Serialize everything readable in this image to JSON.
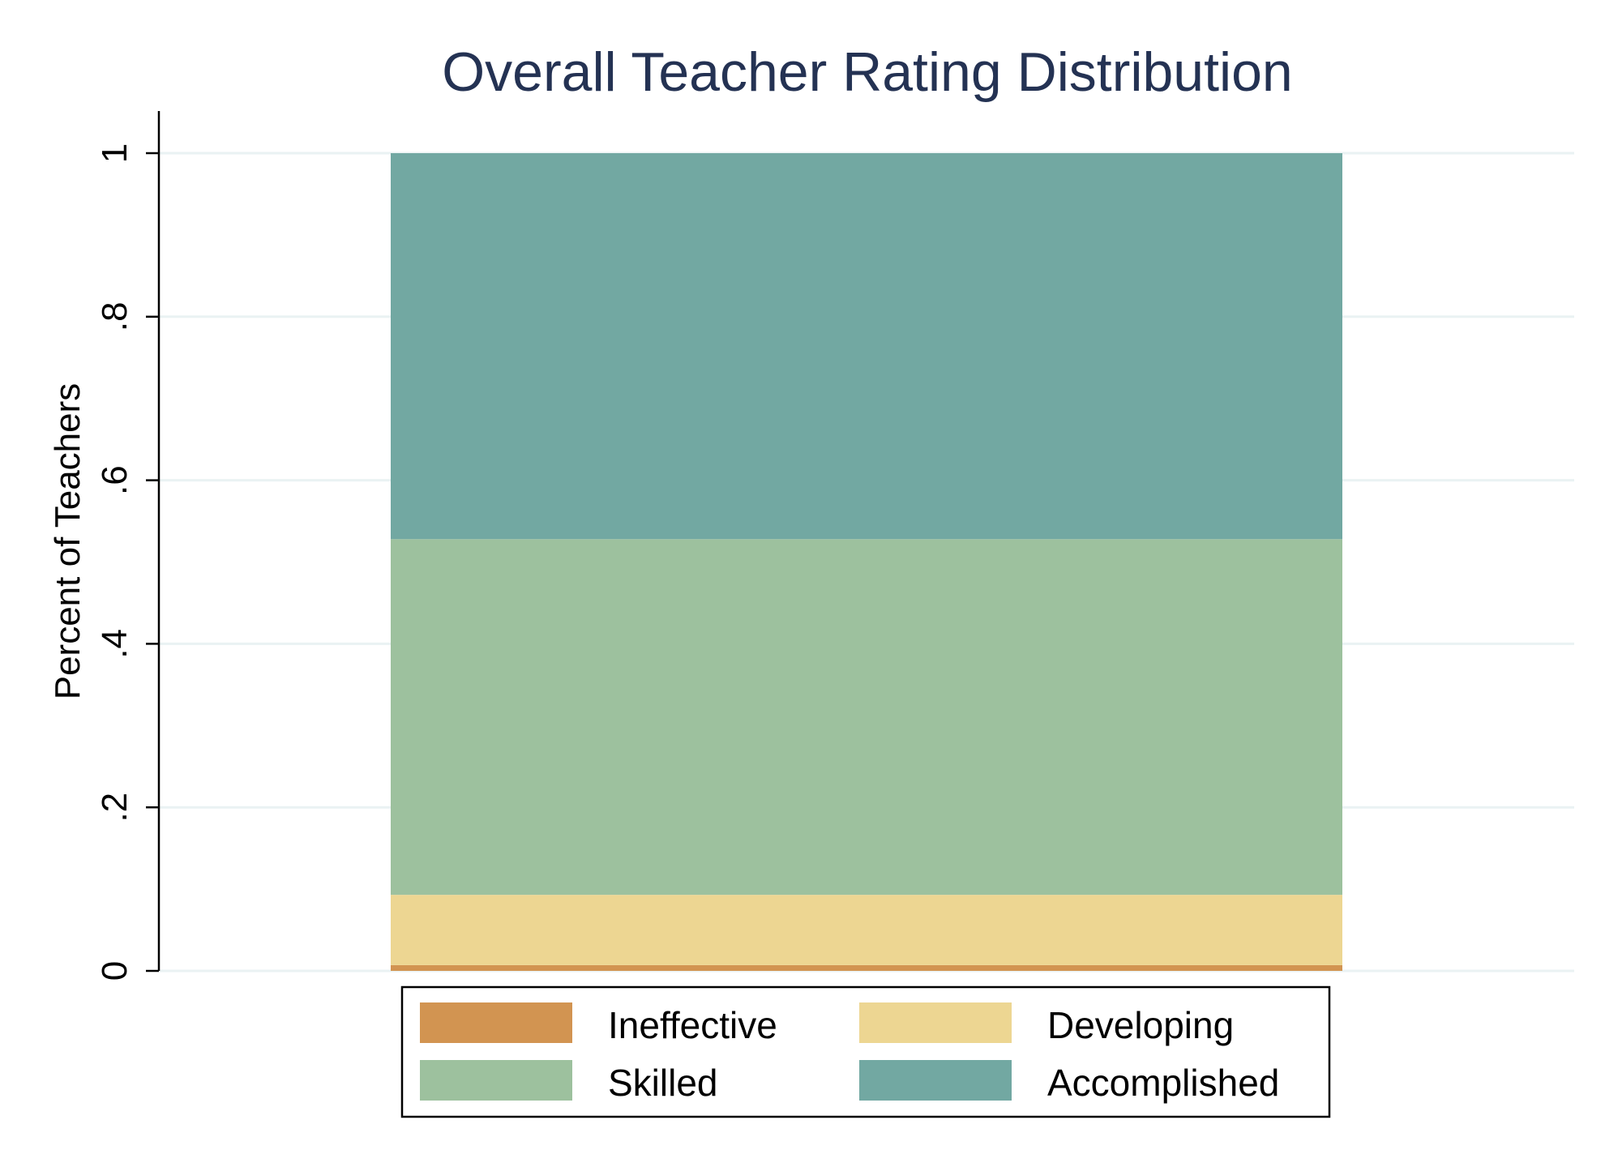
{
  "chart_data": {
    "type": "bar",
    "stacked": true,
    "title": "Overall Teacher Rating Distribution",
    "xlabel": "",
    "ylabel": "Percent of Teachers",
    "ylim": [
      0,
      1
    ],
    "yticks": [
      0,
      0.2,
      0.4,
      0.6,
      0.8,
      1
    ],
    "ytick_labels": [
      "0",
      ".2",
      ".4",
      ".6",
      ".8",
      "1"
    ],
    "grid": true,
    "legend_position": "bottom",
    "series": [
      {
        "name": "Ineffective",
        "values": [
          0.007
        ],
        "color": "#d29451"
      },
      {
        "name": "Developing",
        "values": [
          0.086
        ],
        "color": "#edd692"
      },
      {
        "name": "Skilled",
        "values": [
          0.435
        ],
        "color": "#9dc19e"
      },
      {
        "name": "Accomplished",
        "values": [
          0.472
        ],
        "color": "#72a8a2"
      }
    ]
  }
}
